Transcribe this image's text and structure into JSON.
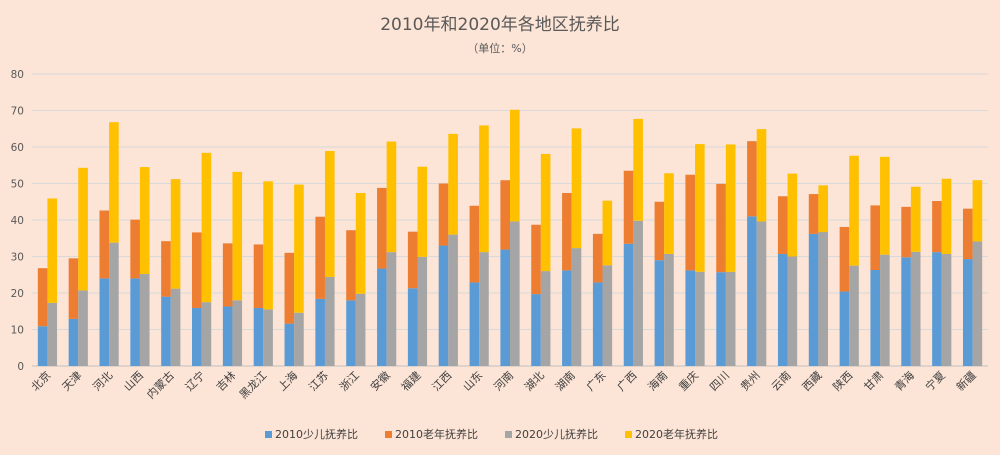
{
  "chart_data": {
    "type": "bar",
    "stacked": true,
    "title": "2010年和2020年各地区抚养比",
    "subtitle": "（单位：%）",
    "categories": [
      "北京",
      "天津",
      "河北",
      "山西",
      "内蒙古",
      "辽宁",
      "吉林",
      "黑龙江",
      "上海",
      "江苏",
      "浙江",
      "安徽",
      "福建",
      "江西",
      "山东",
      "河南",
      "湖北",
      "湖南",
      "广东",
      "广西",
      "海南",
      "重庆",
      "四川",
      "贵州",
      "云南",
      "西藏",
      "陕西",
      "甘肃",
      "青海",
      "宁夏",
      "新疆"
    ],
    "ylim": [
      0,
      80
    ],
    "yticks": [
      0,
      10,
      20,
      30,
      40,
      50,
      60,
      70,
      80
    ],
    "grid": true,
    "legend_position": "bottom",
    "stacks": [
      {
        "year": "2010",
        "series": [
          {
            "name": "2010少儿抚养比",
            "color": "#5B9BD5",
            "values": [
              10.9,
              12.9,
              24,
              24,
              19,
              15.9,
              16.3,
              15.9,
              11.6,
              18.4,
              18,
              26.7,
              21.3,
              33,
              22.9,
              31.9,
              19.7,
              26.2,
              22.9,
              33.5,
              29,
              26.2,
              25.7,
              41,
              30.7,
              36.2,
              20.4,
              26.3,
              29.8,
              31.2,
              29.3
            ]
          },
          {
            "name": "2010老年抚养比",
            "color": "#ED7D31",
            "values": [
              15.9,
              16.6,
              18.6,
              16.1,
              15.2,
              20.7,
              17.3,
              17.4,
              19.4,
              22.5,
              19.2,
              22.1,
              15.5,
              17,
              21,
              19,
              19,
              21.2,
              13.3,
              20,
              16,
              26.2,
              24.2,
              20.6,
              15.8,
              10.9,
              17.7,
              17.7,
              13.8,
              14,
              13.8
            ]
          }
        ]
      },
      {
        "year": "2020",
        "series": [
          {
            "name": "2020少儿抚养比",
            "color": "#A5A5A5",
            "values": [
              17.3,
              20.7,
              33.8,
              25.2,
              21.2,
              17.5,
              18,
              15.5,
              14.6,
              24.4,
              19.8,
              31.2,
              29.9,
              36,
              31.2,
              39.6,
              26,
              32.3,
              27.6,
              39.8,
              30.7,
              25.8,
              25.8,
              39.6,
              30,
              36.7,
              27.5,
              30.5,
              31.3,
              30.7,
              34.1
            ]
          },
          {
            "name": "2020老年抚养比",
            "color": "#FFC000",
            "values": [
              28.6,
              33.6,
              33,
              29.3,
              30,
              40.9,
              35.2,
              35.1,
              35.1,
              34.5,
              27.6,
              30.3,
              24.7,
              27.6,
              34.7,
              30.6,
              32.1,
              32.8,
              17.7,
              27.9,
              22.1,
              35,
              34.9,
              25.3,
              22.7,
              12.8,
              30.1,
              26.8,
              17.8,
              20.6,
              16.8
            ]
          }
        ]
      }
    ]
  }
}
